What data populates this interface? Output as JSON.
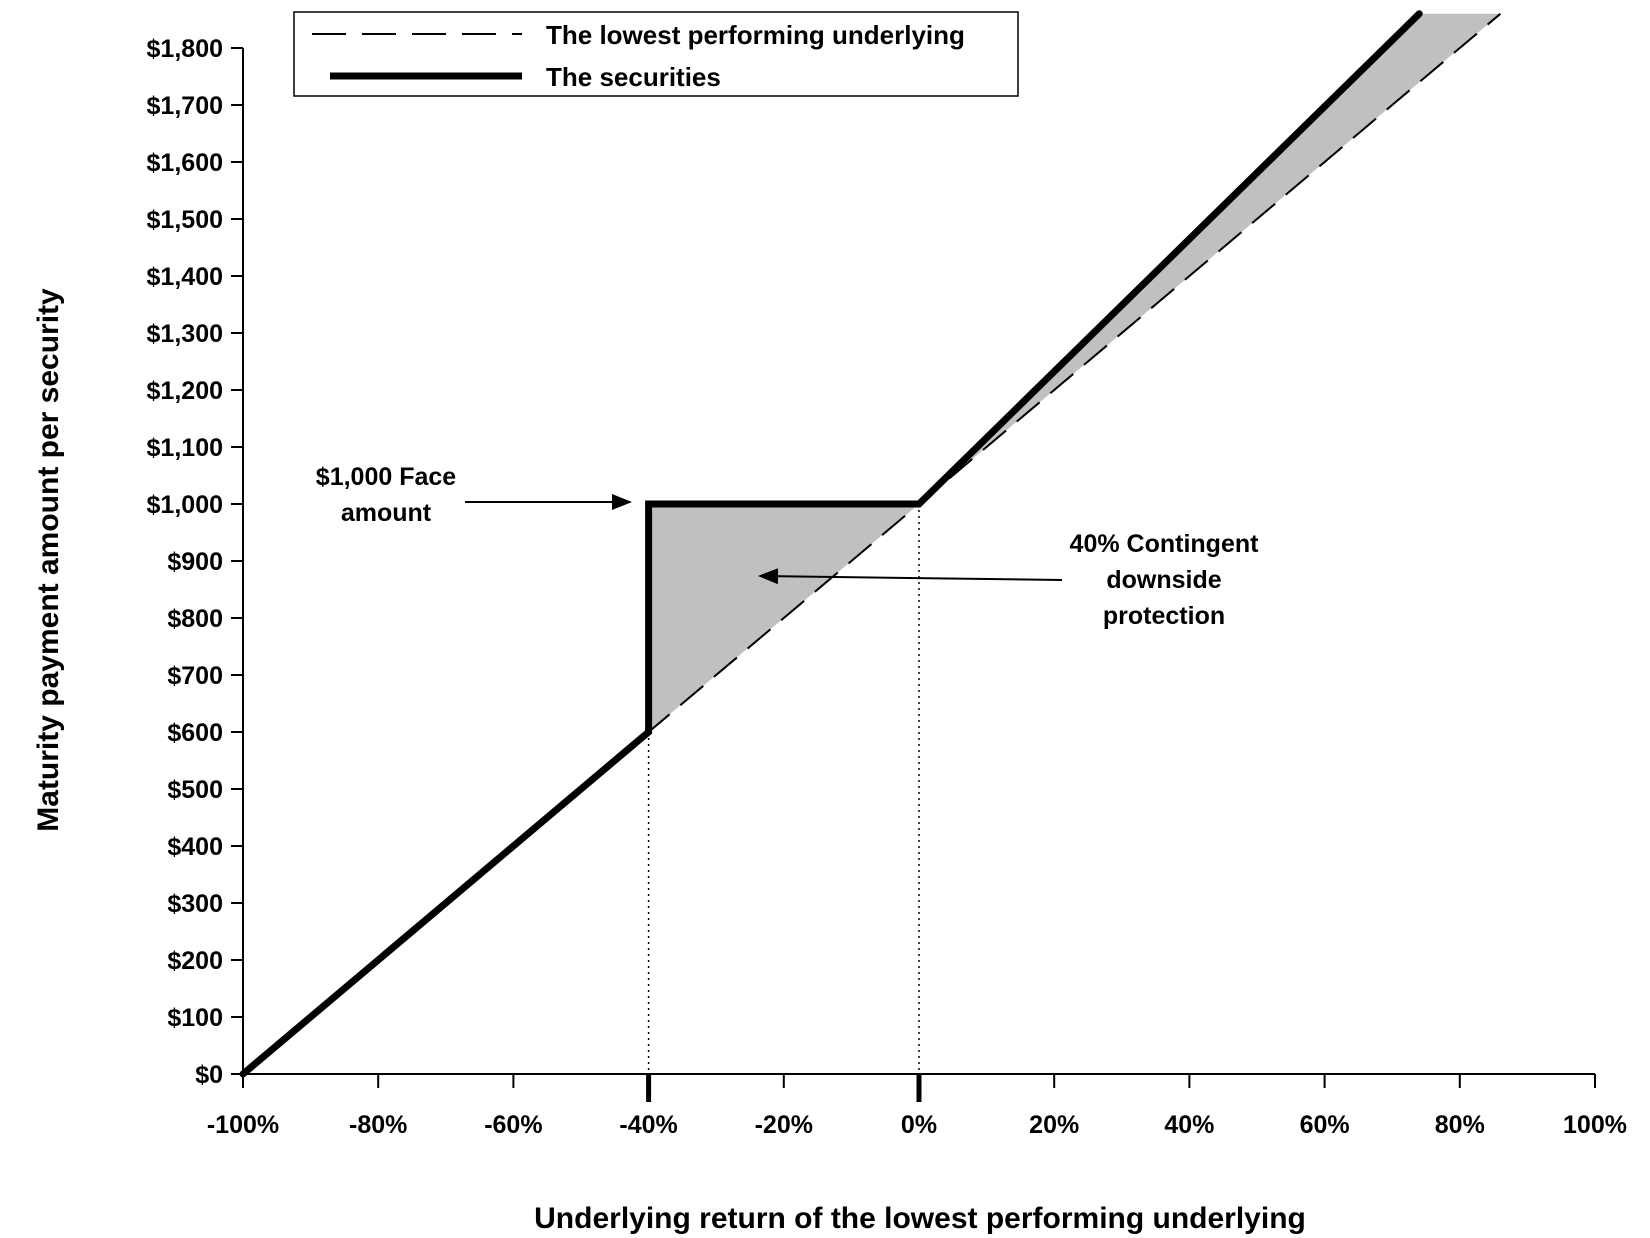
{
  "chart_data": {
    "type": "line",
    "title": "",
    "xlabel": "Underlying return of the lowest performing underlying",
    "ylabel": "Maturity payment amount per security",
    "xlim": [
      -100,
      100
    ],
    "ylim": [
      0,
      1800
    ],
    "x_ticks": [
      -100,
      -80,
      -60,
      -40,
      -20,
      0,
      20,
      40,
      60,
      80,
      100
    ],
    "x_tick_labels": [
      "-100%",
      "-80%",
      "-60%",
      "-40%",
      "-20%",
      "0%",
      "20%",
      "40%",
      "60%",
      "80%",
      "100%"
    ],
    "y_ticks": [
      0,
      100,
      200,
      300,
      400,
      500,
      600,
      700,
      800,
      900,
      1000,
      1100,
      1200,
      1300,
      1400,
      1500,
      1600,
      1700,
      1800
    ],
    "y_tick_labels": [
      "$0",
      "$100",
      "$200",
      "$300",
      "$400",
      "$500",
      "$600",
      "$700",
      "$800",
      "$900",
      "$1,000",
      "$1,100",
      "$1,200",
      "$1,300",
      "$1,400",
      "$1,500",
      "$1,600",
      "$1,700",
      "$1,800"
    ],
    "grid": false,
    "legend": "top-left",
    "series": [
      {
        "name": "The lowest performing underlying",
        "style": "dashed",
        "color": "#000000",
        "points": [
          [
            -100,
            0
          ],
          [
            86,
            1860
          ]
        ]
      },
      {
        "name": "The securities",
        "style": "solid-thick",
        "color": "#000000",
        "points": [
          [
            -100,
            0
          ],
          [
            -40,
            600
          ],
          [
            -40,
            1000
          ],
          [
            0,
            1000
          ],
          [
            74,
            1860
          ]
        ]
      }
    ],
    "shaded_regions": [
      {
        "color": "#c0c0c0",
        "polygon": [
          [
            -40,
            600
          ],
          [
            -40,
            1000
          ],
          [
            0,
            1000
          ]
        ]
      },
      {
        "color": "#c0c0c0",
        "polygon": [
          [
            0,
            1000
          ],
          [
            74,
            1860
          ],
          [
            86,
            1860
          ]
        ]
      }
    ],
    "reference_lines": [
      {
        "x": -40,
        "style": "dotted"
      },
      {
        "x": 0,
        "style": "dotted"
      }
    ],
    "annotations": [
      {
        "text_lines": [
          "$1,000 Face",
          "amount"
        ],
        "arrow_to": [
          -40,
          1000
        ]
      },
      {
        "text_lines": [
          "40% Contingent",
          "downside",
          "protection"
        ],
        "arrow_to": [
          -24,
          880
        ]
      }
    ]
  }
}
